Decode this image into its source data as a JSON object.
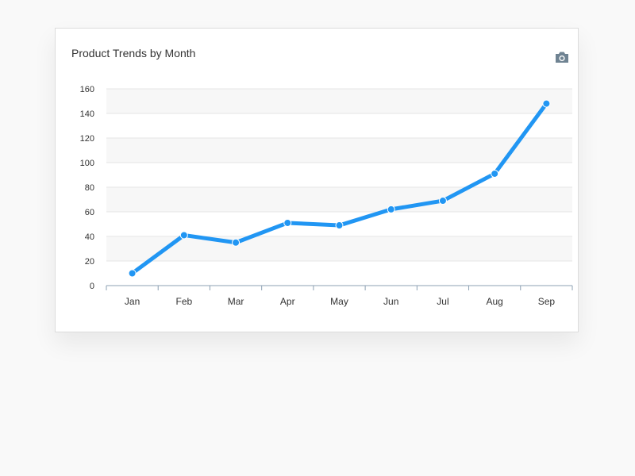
{
  "chart_data": {
    "type": "line",
    "title": "Product Trends by Month",
    "categories": [
      "Jan",
      "Feb",
      "Mar",
      "Apr",
      "May",
      "Jun",
      "Jul",
      "Aug",
      "Sep"
    ],
    "series": [
      {
        "values": [
          10,
          41,
          35,
          51,
          49,
          62,
          69,
          91,
          148
        ]
      }
    ],
    "yticks": [
      0,
      20,
      40,
      60,
      80,
      100,
      120,
      140,
      160
    ],
    "ylim": [
      0,
      160
    ],
    "grid": true,
    "legend": false,
    "colors": {
      "line": "#2196f3",
      "grid": "#e6e6e6",
      "band": "#f7f7f7",
      "axis": "#8ca0b3"
    }
  },
  "toolbar": {
    "download_icon": "camera-icon"
  }
}
